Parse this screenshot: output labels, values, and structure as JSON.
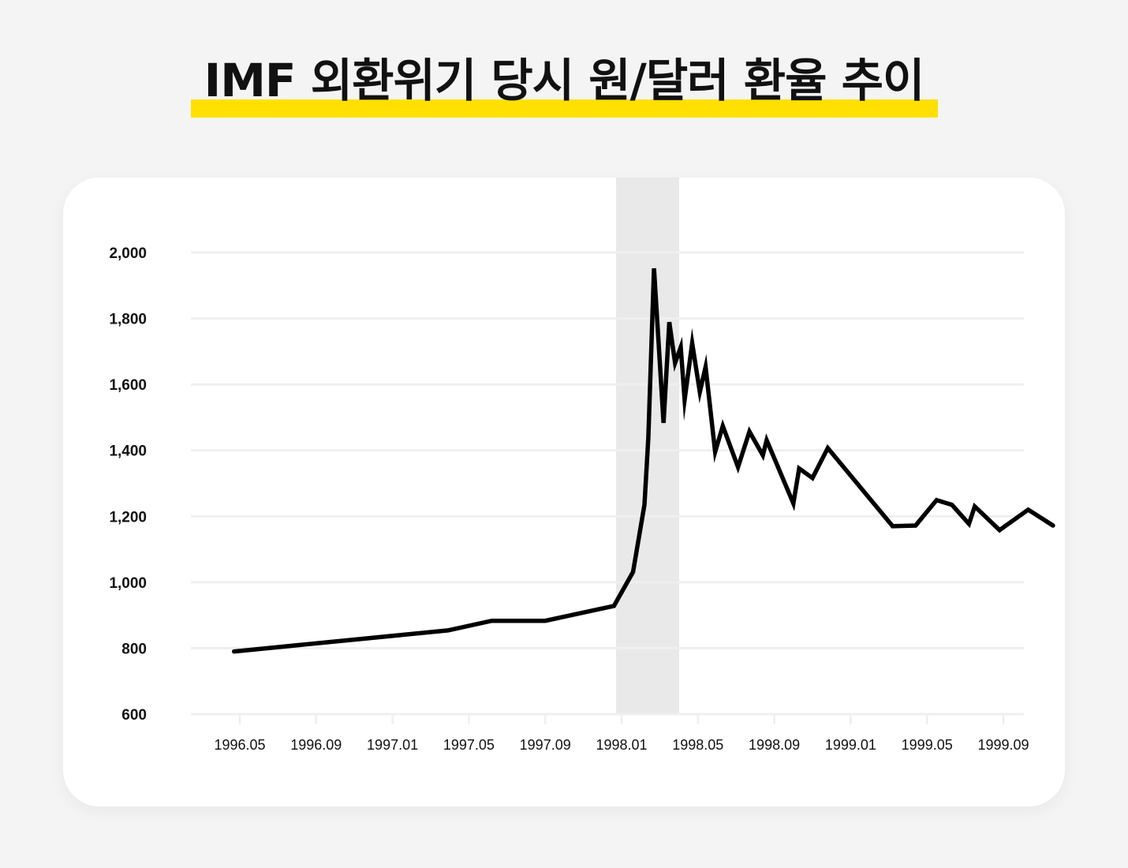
{
  "title": "IMF 외환위기 당시 원/달러 환율 추이",
  "colors": {
    "background": "#f4f4f4",
    "highlight": "#ffe000",
    "line": "#000000",
    "grid": "#efefef",
    "shade": "#e9e9e9"
  },
  "chart_data": {
    "type": "line",
    "title": "IMF 외환위기 당시 원/달러 환율 추이",
    "xlabel": "",
    "ylabel": "",
    "ylim": [
      600,
      2000
    ],
    "yticks": [
      2000,
      1800,
      1600,
      1400,
      1200,
      1000,
      800,
      600
    ],
    "ytick_labels": [
      "2,000",
      "1,800",
      "1,600",
      "1,400",
      "1,200",
      "1,000",
      "800",
      "600"
    ],
    "xticks": [
      "1996.05",
      "1996.09",
      "1997.01",
      "1997.05",
      "1997.09",
      "1998.01",
      "1998.05",
      "1998.09",
      "1999.01",
      "1999.05",
      "1999.09"
    ],
    "grid": "horizontal",
    "legend": null,
    "shaded_region": {
      "from": "1997.12",
      "to": "1998.03",
      "color": "#e9e9e9"
    },
    "series": [
      {
        "name": "원/달러 환율",
        "points": [
          {
            "x": 15.7,
            "label": "1996.03",
            "y": 790
          },
          {
            "x": 26.9,
            "label": "1997.02",
            "y": 854
          },
          {
            "x": 29.2,
            "label": "1997.04",
            "y": 883
          },
          {
            "x": 32.0,
            "label": "1997.07",
            "y": 883
          },
          {
            "x": 35.6,
            "label": "1997.10",
            "y": 928
          },
          {
            "x": 36.6,
            "label": "1997.11",
            "y": 1031
          },
          {
            "x": 37.2,
            "label": "1997.11",
            "y": 1235
          },
          {
            "x": 37.4,
            "label": "1997.12",
            "y": 1438
          },
          {
            "x": 37.7,
            "label": "1997.12",
            "y": 1952
          },
          {
            "x": 38.2,
            "label": "1998.01",
            "y": 1483
          },
          {
            "x": 38.5,
            "label": "1998.01",
            "y": 1789
          },
          {
            "x": 38.8,
            "label": "1998.01",
            "y": 1665
          },
          {
            "x": 39.1,
            "label": "1998.02",
            "y": 1713
          },
          {
            "x": 39.3,
            "label": "1998.02",
            "y": 1553
          },
          {
            "x": 39.7,
            "label": "1998.02",
            "y": 1725
          },
          {
            "x": 40.1,
            "label": "1998.03",
            "y": 1577
          },
          {
            "x": 40.4,
            "label": "1998.03",
            "y": 1653
          },
          {
            "x": 40.9,
            "label": "1998.03",
            "y": 1395
          },
          {
            "x": 41.3,
            "label": "1998.04",
            "y": 1474
          },
          {
            "x": 42.1,
            "label": "1998.05",
            "y": 1349
          },
          {
            "x": 42.7,
            "label": "1998.05",
            "y": 1457
          },
          {
            "x": 43.4,
            "label": "1998.06",
            "y": 1385
          },
          {
            "x": 43.6,
            "label": "1998.06",
            "y": 1431
          },
          {
            "x": 45.0,
            "label": "1998.07",
            "y": 1239
          },
          {
            "x": 45.3,
            "label": "1998.08",
            "y": 1345
          },
          {
            "x": 46.0,
            "label": "1998.08",
            "y": 1316
          },
          {
            "x": 46.8,
            "label": "1998.09",
            "y": 1407
          },
          {
            "x": 50.2,
            "label": "1999.01",
            "y": 1170
          },
          {
            "x": 51.4,
            "label": "1999.02",
            "y": 1172
          },
          {
            "x": 52.5,
            "label": "1999.03",
            "y": 1249
          },
          {
            "x": 53.3,
            "label": "1999.04",
            "y": 1235
          },
          {
            "x": 54.2,
            "label": "1999.05",
            "y": 1177
          },
          {
            "x": 54.5,
            "label": "1999.05",
            "y": 1230
          },
          {
            "x": 55.8,
            "label": "1999.06",
            "y": 1158
          },
          {
            "x": 57.3,
            "label": "1999.08",
            "y": 1220
          },
          {
            "x": 58.6,
            "label": "1999.09",
            "y": 1172
          }
        ]
      }
    ],
    "x_unit_note": "x = months since 1995.01 (1996.05 = 16)"
  }
}
